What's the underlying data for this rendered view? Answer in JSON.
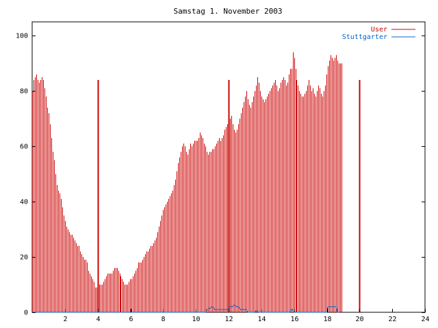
{
  "chart_data": {
    "type": "bar",
    "title": "Samstag 1. November 2003",
    "xlabel": "",
    "ylabel": "",
    "xlim": [
      0,
      24
    ],
    "ylim": [
      0,
      105
    ],
    "x_ticks": [
      2,
      4,
      6,
      8,
      10,
      12,
      14,
      16,
      18,
      20,
      22,
      24
    ],
    "y_ticks": [
      0,
      20,
      40,
      60,
      80,
      100
    ],
    "grid": false,
    "legend_placement": "top-right",
    "vertical_markers_at": [
      4,
      12,
      20
    ],
    "series": [
      {
        "name": "User",
        "color": "#cc0000",
        "x_start": 0,
        "x_step": 0.0833,
        "values": [
          80,
          84,
          85,
          86,
          84,
          83,
          84,
          85,
          84,
          81,
          78,
          74,
          72,
          68,
          63,
          58,
          55,
          50,
          46,
          44,
          43,
          41,
          38,
          35,
          33,
          31,
          30,
          29,
          28,
          28,
          27,
          26,
          25,
          24,
          24,
          22,
          21,
          20,
          19,
          19,
          18,
          15,
          14,
          13,
          12,
          11,
          9,
          9,
          10,
          10,
          10,
          10,
          11,
          12,
          13,
          14,
          14,
          14,
          14,
          15,
          16,
          16,
          16,
          15,
          14,
          13,
          12,
          11,
          10,
          10,
          10,
          11,
          12,
          12,
          13,
          14,
          15,
          16,
          18,
          18,
          18,
          19,
          20,
          21,
          22,
          22,
          23,
          24,
          24,
          25,
          26,
          27,
          29,
          31,
          33,
          35,
          37,
          38,
          39,
          40,
          41,
          42,
          43,
          44,
          46,
          48,
          51,
          54,
          56,
          58,
          60,
          61,
          60,
          58,
          57,
          59,
          61,
          60,
          61,
          62,
          62,
          62,
          63,
          65,
          64,
          63,
          61,
          60,
          58,
          57,
          58,
          58,
          59,
          59,
          60,
          61,
          62,
          63,
          62,
          63,
          64,
          66,
          67,
          68,
          70,
          70,
          71,
          68,
          66,
          65,
          66,
          68,
          70,
          72,
          74,
          76,
          78,
          80,
          77,
          75,
          74,
          76,
          78,
          80,
          82,
          85,
          83,
          80,
          78,
          77,
          76,
          77,
          78,
          79,
          80,
          81,
          82,
          83,
          84,
          82,
          80,
          81,
          83,
          84,
          85,
          84,
          82,
          83,
          86,
          88,
          88,
          94,
          92,
          88,
          84,
          82,
          80,
          79,
          78,
          78,
          79,
          80,
          82,
          84,
          82,
          80,
          81,
          79,
          78,
          80,
          82,
          81,
          79,
          78,
          80,
          82,
          86,
          89,
          91,
          93,
          92,
          91,
          92,
          93,
          91,
          90,
          90,
          90
        ]
      },
      {
        "name": "Stuttgarter",
        "color": "#0066cc",
        "x_start": 0,
        "x_step": 0.0833,
        "values": [
          0,
          0,
          0,
          0,
          0,
          0,
          0,
          0,
          0,
          0,
          0,
          0,
          0,
          0,
          0,
          0,
          0,
          0,
          0,
          0,
          0,
          0,
          0,
          0,
          0,
          0,
          0,
          0,
          0,
          0,
          0,
          0,
          0,
          0,
          0,
          0,
          0,
          0,
          0,
          0,
          0,
          0,
          0,
          0,
          0,
          0,
          0,
          0,
          0,
          0,
          0,
          0,
          0,
          0,
          0,
          0,
          0,
          0,
          0,
          0,
          0,
          0,
          0,
          0,
          0,
          0,
          0,
          0,
          0,
          0,
          0,
          0,
          0,
          0,
          0,
          0,
          0,
          0,
          0,
          0,
          0,
          0,
          0,
          0,
          0,
          0,
          0,
          0,
          0,
          0,
          0,
          0,
          0,
          0,
          0,
          0,
          0,
          0,
          0,
          0,
          0,
          0,
          0,
          0,
          0,
          0,
          0,
          0,
          0,
          0,
          0,
          0,
          0,
          0,
          0,
          0,
          0,
          0,
          0,
          0,
          0,
          0,
          0,
          0,
          0,
          0,
          0,
          0,
          1,
          1,
          1.5,
          1.5,
          2,
          1.5,
          1,
          1,
          1,
          1,
          1,
          1,
          1,
          1,
          1,
          1,
          1.5,
          2,
          2,
          2,
          2.5,
          2.5,
          2,
          2,
          1.5,
          1,
          1,
          1,
          1,
          1,
          0,
          0,
          0,
          0,
          0,
          0,
          0.5,
          0.5,
          0,
          0,
          0,
          0,
          0,
          0,
          0,
          0,
          0,
          0,
          0,
          0,
          0,
          0,
          0,
          0,
          0,
          0,
          0,
          0,
          0,
          0,
          0,
          0,
          1,
          1,
          0,
          0,
          0,
          0,
          0,
          0,
          0,
          0,
          0,
          0,
          0,
          0,
          0,
          0,
          0,
          0,
          0,
          0,
          0,
          0,
          0,
          0,
          0,
          0,
          0,
          2,
          2,
          2,
          2,
          2,
          2,
          2,
          0,
          0
        ]
      }
    ]
  }
}
